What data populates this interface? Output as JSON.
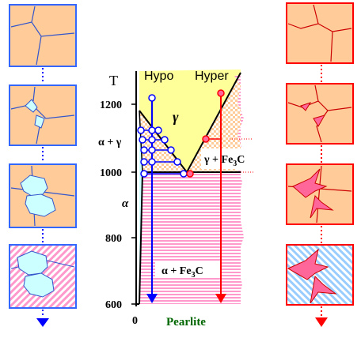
{
  "axis": {
    "y_title": "T",
    "y_ticks": [
      "1200",
      "1000",
      "800",
      "600"
    ],
    "x_tick": "0",
    "x_label": "Pearlite"
  },
  "regions": {
    "hypo": "Hypo",
    "hyper": "Hyper",
    "gamma": "γ",
    "alpha_gamma": "α + γ",
    "alpha": "α",
    "gamma_fe3c_a": "γ + Fe",
    "gamma_fe3c_sub": "3",
    "gamma_fe3c_b": "C",
    "alpha_fe3c_a": "α + Fe",
    "alpha_fe3c_sub": "3",
    "alpha_fe3c_b": "C"
  },
  "colors": {
    "austenite": "#FFCC99",
    "ferrite": "#CCFFFF",
    "gamma_field": "#FFFF99",
    "pearlite_stripe": "#FF99CC",
    "hypo_line": "#0000FF",
    "hyper_line": "#FF0000",
    "hypo_frame": "#3366FF",
    "hyper_frame": "#FF0000"
  },
  "microstructure_panels": {
    "hypo": [
      "austenite grains",
      "ferrite nucleation at grain boundaries",
      "ferrite growth",
      "pearlite with proeutectoid ferrite"
    ],
    "hyper": [
      "austenite grains",
      "cementite nucleation at grain boundaries",
      "cementite growth",
      "pearlite with proeutectoid cementite"
    ]
  }
}
